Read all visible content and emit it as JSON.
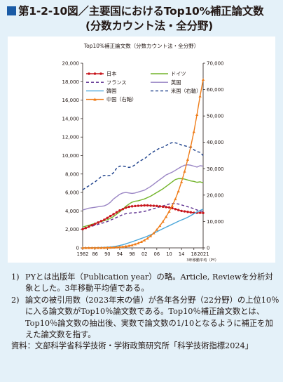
{
  "header": {
    "title_line1": "第1-2-10図／主要国におけるTop10%補正論文数",
    "title_line2": "(分数カウント法・全分野)"
  },
  "notes": [
    {
      "num": "1)",
      "text": "PYとは出版年（Publication year）の略。Article, Reviewを分析対象とした。3年移動平均値である。"
    },
    {
      "num": "2)",
      "text": "論文の被引用数（2023年末の値）が各年各分野（22分野）の上位10％に入る論文数がTop10％論文数である。Top10％補正論文数とは、Top10％論文数の抽出後、実数で論文数の1/10となるように補正を加えた論文数を指す。"
    }
  ],
  "source": {
    "label": "資料：",
    "text": "文部科学省科学技術・学術政策研究所「科学技術指標2024」"
  },
  "colors": {
    "title_square": "#1a5ba6",
    "panel_bg": "#e4f1f9"
  },
  "chart_data": {
    "type": "line",
    "title": "Top10%補正論文数（分数カウント法・全分野）",
    "x": [
      1982,
      1983,
      1984,
      1985,
      1986,
      1987,
      1988,
      1989,
      1990,
      1991,
      1992,
      1993,
      1994,
      1995,
      1996,
      1997,
      1998,
      1999,
      2000,
      2001,
      2002,
      2003,
      2004,
      2005,
      2006,
      2007,
      2008,
      2009,
      2010,
      2011,
      2012,
      2013,
      2014,
      2015,
      2016,
      2017,
      2018,
      2019,
      2020,
      2021
    ],
    "x_ticks": [
      1982,
      1986,
      1990,
      1994,
      1998,
      2002,
      2006,
      2010,
      2014,
      2018,
      2021
    ],
    "x_tick_labels": [
      "1982",
      "86",
      "90",
      "94",
      "98",
      "02",
      "06",
      "10",
      "14",
      "18",
      "2021"
    ],
    "xlabel": "3年移動平均（PY）",
    "ylim": [
      0,
      20000
    ],
    "y_ticks": [
      0,
      2000,
      4000,
      6000,
      8000,
      10000,
      12000,
      14000,
      16000,
      18000,
      20000
    ],
    "y_tick_labels": [
      "0",
      "2,000",
      "4,000",
      "6,000",
      "8,000",
      "10,000",
      "12,000",
      "14,000",
      "16,000",
      "18,000",
      "20,000"
    ],
    "y2lim": [
      0,
      70000
    ],
    "y2_ticks": [
      0,
      10000,
      20000,
      30000,
      40000,
      50000,
      60000,
      70000
    ],
    "y2_tick_labels": [
      "0",
      "10,000",
      "20,000",
      "30,000",
      "40,000",
      "50,000",
      "60,000",
      "70,000"
    ],
    "series": [
      {
        "name": "日本",
        "color": "#c8161d",
        "dash": "solid",
        "marker": "circle",
        "axis": "left",
        "values": [
          2020,
          2150,
          2300,
          2450,
          2600,
          2750,
          2900,
          3050,
          3250,
          3450,
          3650,
          3850,
          4050,
          4200,
          4350,
          4450,
          4500,
          4530,
          4560,
          4580,
          4600,
          4600,
          4580,
          4560,
          4540,
          4500,
          4460,
          4420,
          4380,
          4300,
          4200,
          4100,
          4000,
          3950,
          3900,
          3850,
          3800,
          3800,
          3800,
          3780
        ]
      },
      {
        "name": "ドイツ",
        "color": "#72b42a",
        "dash": "solid",
        "marker": "none",
        "axis": "left",
        "values": [
          2250,
          2350,
          2450,
          2550,
          2650,
          2750,
          2850,
          2950,
          3050,
          3200,
          3400,
          3650,
          3900,
          4200,
          4500,
          4750,
          4950,
          5050,
          5100,
          5200,
          5300,
          5450,
          5600,
          5800,
          6000,
          6200,
          6400,
          6650,
          6900,
          7150,
          7400,
          7500,
          7500,
          7450,
          7350,
          7250,
          7200,
          7100,
          7150,
          7050
        ]
      },
      {
        "name": "フランス",
        "color": "#5b2d8e",
        "dash": "dashed",
        "marker": "none",
        "axis": "left",
        "values": [
          2050,
          2150,
          2250,
          2350,
          2450,
          2550,
          2650,
          2750,
          2850,
          3000,
          3150,
          3300,
          3450,
          3600,
          3700,
          3750,
          3800,
          3800,
          3850,
          3900,
          3950,
          4050,
          4150,
          4250,
          4350,
          4450,
          4550,
          4650,
          4750,
          4800,
          4800,
          4750,
          4650,
          4550,
          4450,
          4350,
          4250,
          4100,
          4000,
          3950
        ]
      },
      {
        "name": "英国",
        "color": "#9a85c4",
        "dash": "solid",
        "marker": "none",
        "axis": "left",
        "values": [
          4100,
          4200,
          4300,
          4350,
          4400,
          4450,
          4500,
          4550,
          4700,
          4950,
          5300,
          5550,
          5800,
          5950,
          6000,
          5950,
          5900,
          5950,
          6050,
          6150,
          6250,
          6450,
          6650,
          6900,
          7150,
          7400,
          7650,
          7900,
          8050,
          8200,
          8400,
          8600,
          8800,
          8950,
          9000,
          8950,
          8850,
          8750,
          8900,
          8850
        ]
      },
      {
        "name": "韓国",
        "color": "#4aa6d9",
        "dash": "solid",
        "marker": "none",
        "axis": "left",
        "values": [
          10,
          12,
          15,
          20,
          25,
          30,
          40,
          55,
          75,
          100,
          140,
          190,
          260,
          340,
          440,
          550,
          660,
          780,
          900,
          1020,
          1140,
          1270,
          1420,
          1580,
          1750,
          1920,
          2080,
          2240,
          2400,
          2560,
          2720,
          2880,
          3020,
          3160,
          3320,
          3500,
          3700,
          3880,
          4050,
          4200
        ]
      },
      {
        "name": "米国（右軸）",
        "color": "#1b3f8b",
        "dash": "dashed",
        "marker": "none",
        "axis": "right",
        "values": [
          22000,
          22800,
          23500,
          24300,
          25000,
          26000,
          27000,
          27500,
          27300,
          27500,
          28500,
          30200,
          31000,
          31000,
          30800,
          30500,
          30800,
          31500,
          32500,
          33200,
          33800,
          34700,
          35800,
          36500,
          37200,
          37800,
          38200,
          38800,
          39500,
          39900,
          39800,
          39500,
          39000,
          38700,
          38400,
          38000,
          37200,
          36500,
          36200,
          35000
        ]
      },
      {
        "name": "中国（右軸）",
        "color": "#ef7d1a",
        "dash": "solid",
        "marker": "triangle",
        "axis": "right",
        "values": [
          0,
          0,
          0,
          0,
          10,
          20,
          30,
          50,
          80,
          120,
          170,
          240,
          330,
          450,
          600,
          800,
          1050,
          1400,
          1800,
          2300,
          2900,
          3600,
          4500,
          5600,
          6900,
          8400,
          10000,
          11800,
          13800,
          16000,
          18500,
          21500,
          25000,
          29000,
          33500,
          38500,
          44000,
          50500,
          57500,
          63800
        ]
      }
    ],
    "legend": {
      "position": "top-left",
      "columns": 2
    },
    "grid": false
  }
}
